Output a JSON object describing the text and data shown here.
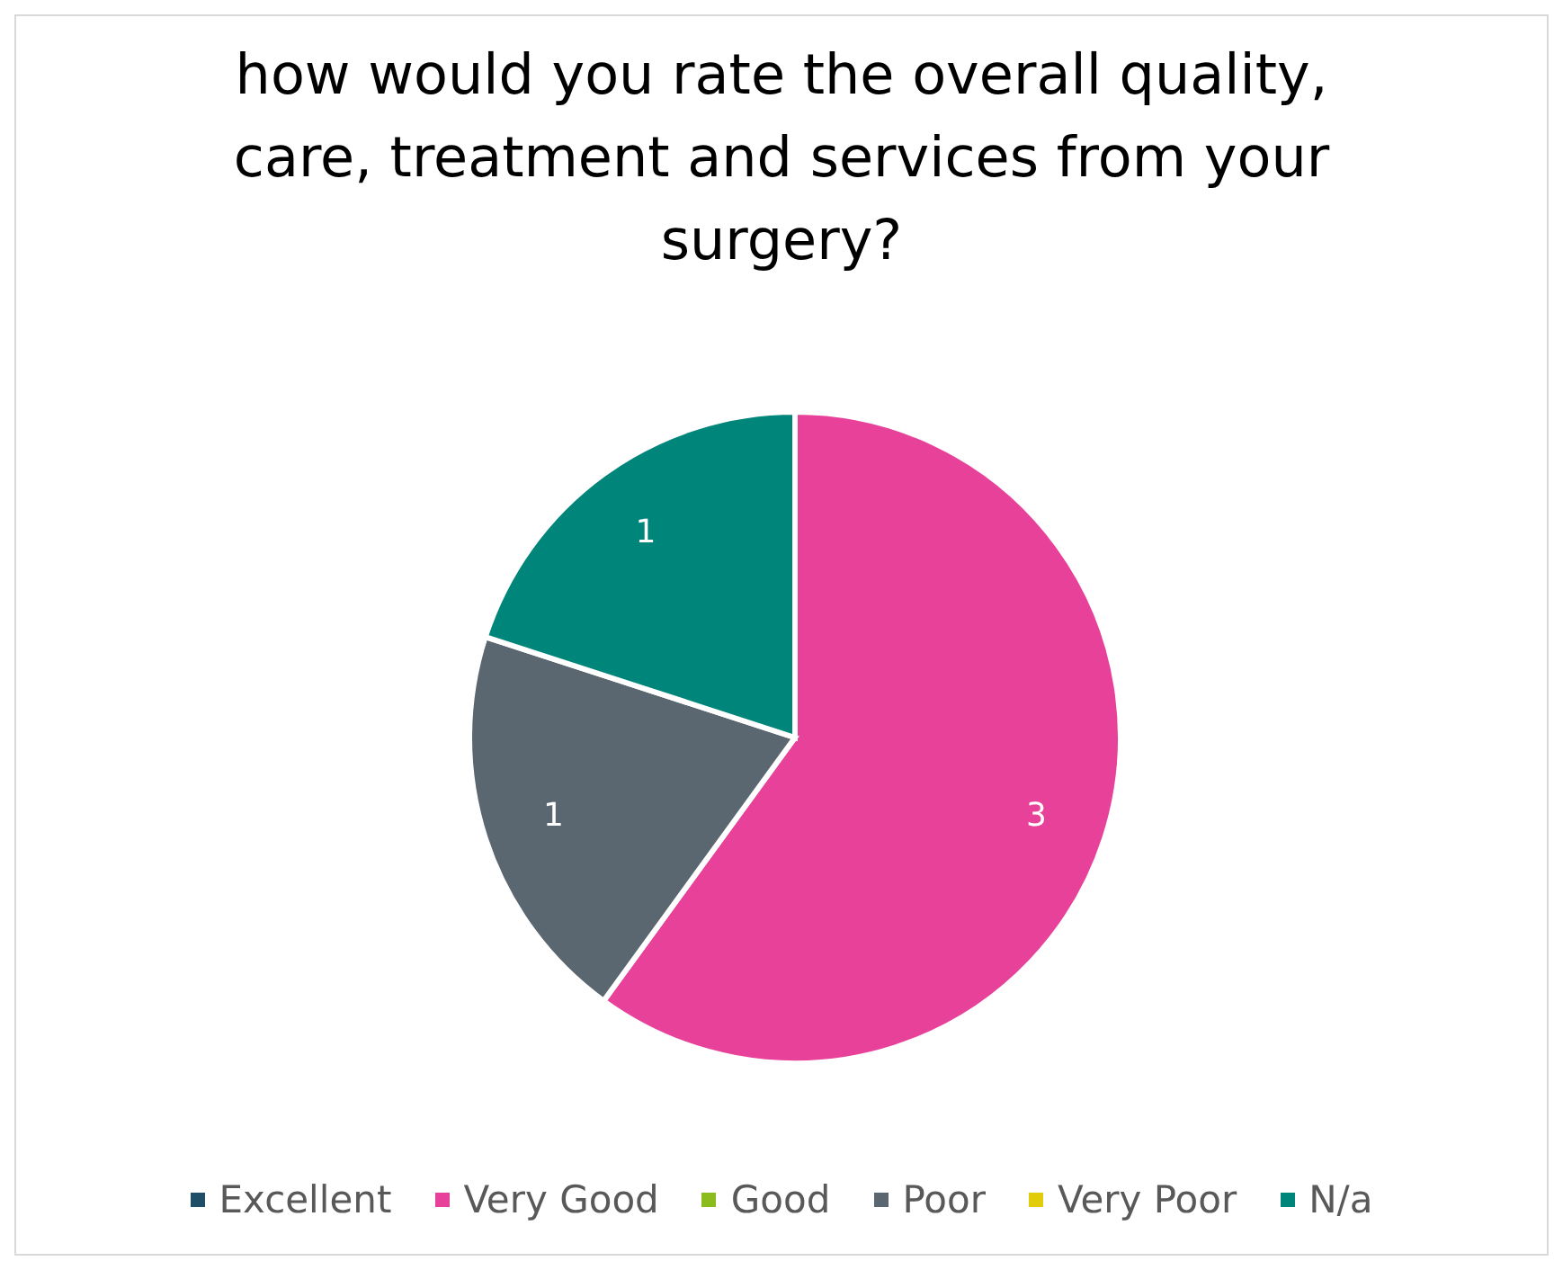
{
  "chart_data": {
    "type": "pie",
    "title": "how would you rate the overall quality, care, treatment and services from your surgery?",
    "categories": [
      "Excellent",
      "Very Good",
      "Good",
      "Poor",
      "Very Poor",
      "N/a"
    ],
    "values": [
      0,
      3,
      0,
      1,
      0,
      1
    ],
    "colors": [
      "#1f4e67",
      "#e8419a",
      "#8cbb1e",
      "#5a6670",
      "#e2cc0a",
      "#00857a"
    ],
    "value_labels": [
      null,
      "3",
      null,
      "1",
      null,
      "1"
    ],
    "legend": "bottom"
  }
}
